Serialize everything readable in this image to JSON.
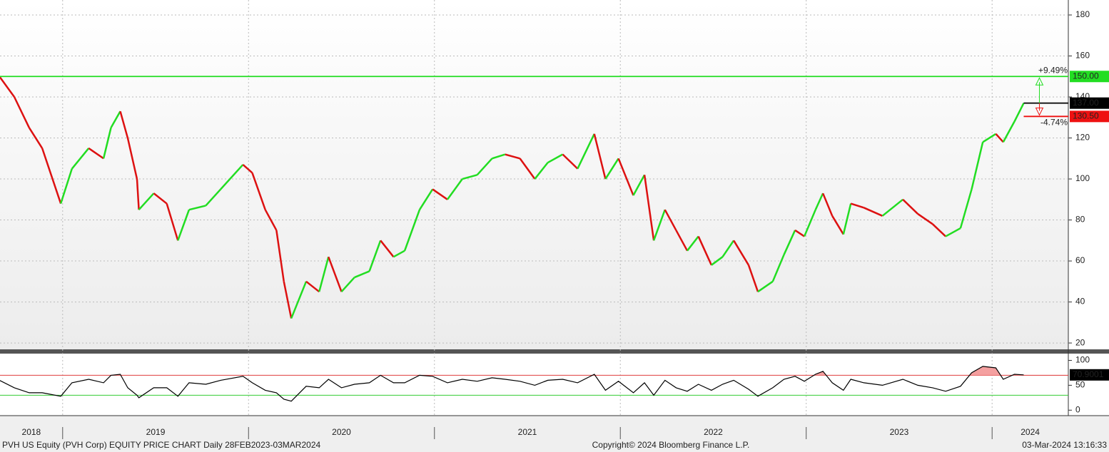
{
  "chart_data": [
    {
      "type": "price-line",
      "x": [
        2018.66,
        2018.74,
        2018.82,
        2018.89,
        2018.99,
        2019.05,
        2019.14,
        2019.22,
        2019.26,
        2019.31,
        2019.35,
        2019.4,
        2019.41,
        2019.49,
        2019.56,
        2019.62,
        2019.68,
        2019.77,
        2019.85,
        2019.97,
        2020.02,
        2020.09,
        2020.15,
        2020.19,
        2020.23,
        2020.31,
        2020.38,
        2020.43,
        2020.5,
        2020.57,
        2020.65,
        2020.71,
        2020.78,
        2020.84,
        2020.92,
        2020.99,
        2021.07,
        2021.15,
        2021.23,
        2021.31,
        2021.38,
        2021.46,
        2021.54,
        2021.61,
        2021.69,
        2021.77,
        2021.86,
        2021.92,
        2021.99,
        2022.07,
        2022.13,
        2022.18,
        2022.24,
        2022.3,
        2022.36,
        2022.42,
        2022.49,
        2022.55,
        2022.61,
        2022.69,
        2022.74,
        2022.82,
        2022.88,
        2022.94,
        2022.99,
        2023.05,
        2023.09,
        2023.14,
        2023.2,
        2023.24,
        2023.31,
        2023.41,
        2023.52,
        2023.6,
        2023.68,
        2023.75,
        2023.83,
        2023.89,
        2023.95,
        2024.02,
        2024.06,
        2024.12,
        2024.17
      ],
      "values": [
        150,
        140,
        125,
        115,
        88,
        105,
        115,
        110,
        125,
        133,
        120,
        100,
        85,
        93,
        88,
        70,
        85,
        87,
        95,
        107,
        103,
        85,
        75,
        50,
        32,
        50,
        45,
        62,
        45,
        52,
        55,
        70,
        62,
        65,
        85,
        95,
        90,
        100,
        102,
        110,
        112,
        110,
        100,
        108,
        112,
        105,
        122,
        100,
        110,
        92,
        102,
        70,
        85,
        75,
        65,
        72,
        58,
        62,
        70,
        58,
        45,
        50,
        63,
        75,
        72,
        85,
        93,
        82,
        73,
        88,
        86,
        82,
        90,
        83,
        78,
        72,
        76,
        95,
        118,
        122,
        118,
        128,
        137
      ],
      "up_color": "#22dd22",
      "down_color": "#dd1111",
      "xlim": [
        2018.663,
        2024.41
      ],
      "xticks": [
        2018,
        2019,
        2020,
        2021,
        2022,
        2023,
        2024
      ],
      "ylim": [
        16.9,
        187.3
      ],
      "yticks": [
        20,
        40,
        60,
        80,
        100,
        120,
        140,
        160,
        180
      ],
      "grid": true,
      "levels": [
        {
          "value": 150,
          "label": "150.00",
          "color": "#22dd22",
          "line": "full"
        },
        {
          "value": 137,
          "label": "137.00",
          "color": "#000000",
          "line": "short"
        },
        {
          "value": 130.5,
          "label": "130.50",
          "color": "#ee1111",
          "line": "short"
        }
      ],
      "annotations": [
        {
          "text": "+9.49%",
          "color": "#22dd22"
        },
        {
          "text": "-4.74%",
          "color": "#ee1111"
        }
      ]
    },
    {
      "type": "rsi",
      "values": [
        60,
        45,
        35,
        35,
        28,
        55,
        62,
        55,
        70,
        72,
        45,
        30,
        25,
        45,
        45,
        28,
        55,
        52,
        60,
        68,
        55,
        40,
        35,
        22,
        18,
        48,
        45,
        62,
        45,
        52,
        55,
        70,
        55,
        55,
        70,
        68,
        55,
        62,
        58,
        65,
        62,
        58,
        50,
        60,
        62,
        55,
        72,
        40,
        58,
        35,
        55,
        30,
        60,
        45,
        38,
        52,
        40,
        52,
        60,
        42,
        28,
        45,
        62,
        68,
        58,
        72,
        78,
        55,
        40,
        62,
        55,
        50,
        62,
        50,
        45,
        38,
        48,
        75,
        88,
        85,
        62,
        72,
        70.9001
      ],
      "color": "#000000",
      "ylim": [
        -11,
        115
      ],
      "yticks": [
        0,
        50,
        100
      ],
      "bands": [
        {
          "value": 70,
          "color": "#dd3333"
        },
        {
          "value": 30,
          "color": "#33cc33"
        }
      ]
    },
    {
      "type": "footer",
      "left": "PVH US Equity (PVH Corp) EQUITY PRICE CHART  Daily 28FEB2023-03MAR2024",
      "center": "Copyright© 2024 Bloomberg Finance L.P.",
      "right": "03-Mar-2024 13:16:33"
    }
  ]
}
